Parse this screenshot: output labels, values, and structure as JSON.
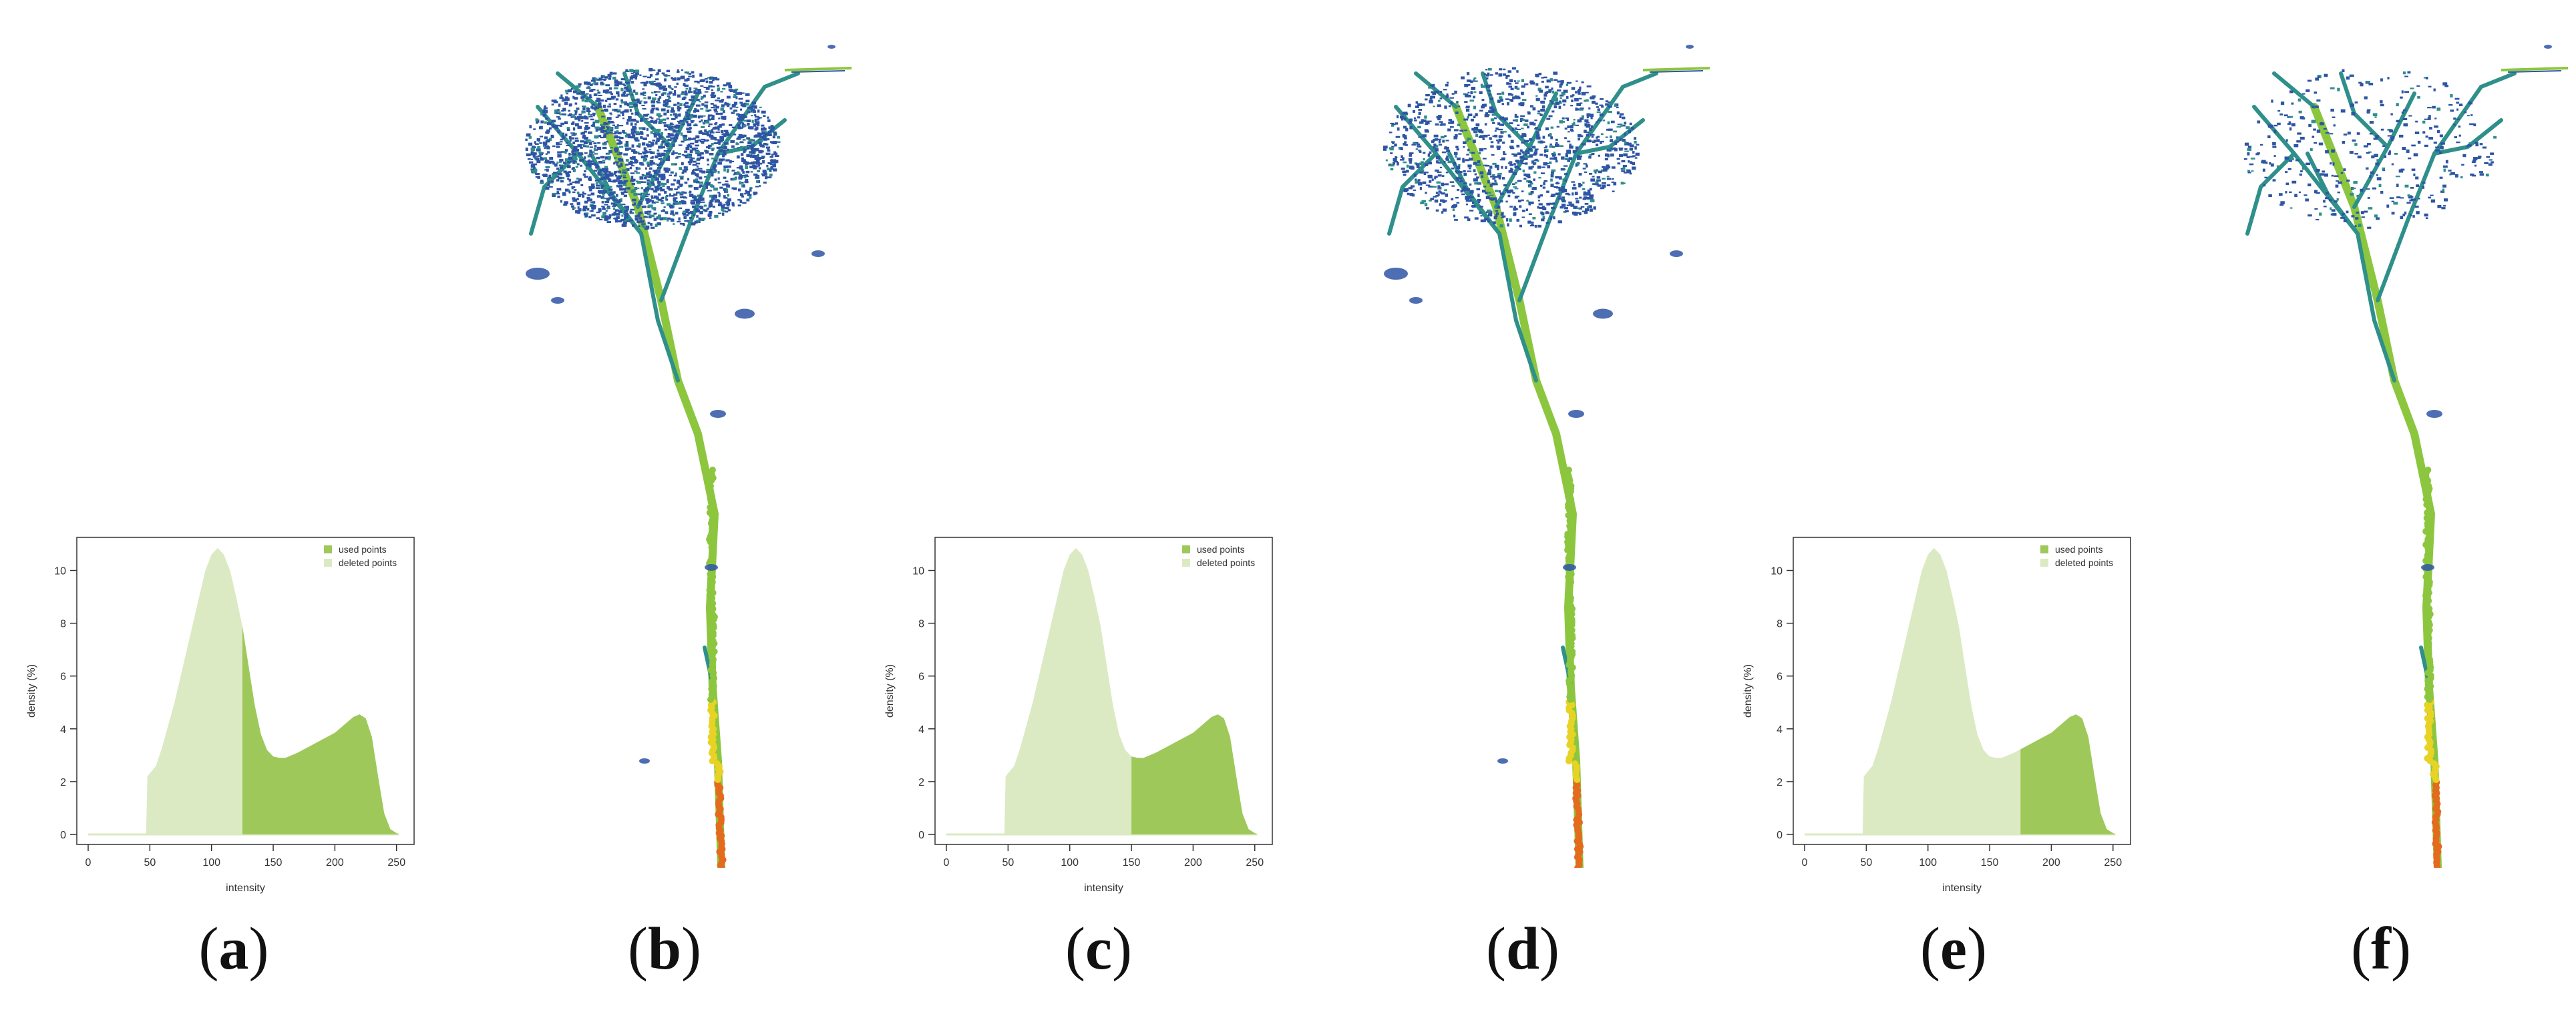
{
  "colors": {
    "used": "#9ec95a",
    "deleted": "#dbeac3",
    "axis": "#333333",
    "tree_blue": "#2e55a4",
    "tree_teal": "#2f8f8a",
    "tree_green": "#8cc63f",
    "tree_yellow": "#e8d325",
    "tree_orange": "#e46a1e"
  },
  "labels": [
    "a",
    "b",
    "c",
    "d",
    "e",
    "f"
  ],
  "chart_data": [
    {
      "type": "area",
      "panel": "a",
      "xlabel": "intensity",
      "ylabel": "density (%)",
      "xlim": [
        0,
        255
      ],
      "ylim": [
        0,
        11
      ],
      "xticks": [
        0,
        50,
        100,
        150,
        200,
        250
      ],
      "yticks": [
        0,
        2,
        4,
        6,
        8,
        10
      ],
      "threshold": 125,
      "legend": {
        "position": "top-right",
        "items": [
          "used points",
          "deleted points"
        ]
      },
      "series": [
        {
          "name": "used points",
          "from": 125,
          "to": 255
        },
        {
          "name": "deleted points",
          "from": 0,
          "to": 125
        }
      ],
      "x": [
        0,
        47,
        48,
        55,
        60,
        70,
        80,
        90,
        95,
        100,
        105,
        110,
        115,
        120,
        125,
        130,
        135,
        140,
        145,
        150,
        155,
        160,
        170,
        180,
        190,
        200,
        210,
        215,
        220,
        225,
        230,
        235,
        240,
        245,
        250,
        252
      ],
      "values": [
        0,
        0,
        2.2,
        2.6,
        3.3,
        5.0,
        7.0,
        9.0,
        10.0,
        10.6,
        10.85,
        10.6,
        10.0,
        9.0,
        7.9,
        6.4,
        4.9,
        3.8,
        3.2,
        2.95,
        2.9,
        2.9,
        3.1,
        3.35,
        3.6,
        3.85,
        4.25,
        4.45,
        4.55,
        4.4,
        3.7,
        2.2,
        0.8,
        0.2,
        0.05,
        0
      ]
    },
    {
      "type": "area",
      "panel": "c",
      "xlabel": "intensity",
      "ylabel": "density (%)",
      "xlim": [
        0,
        255
      ],
      "ylim": [
        0,
        11
      ],
      "xticks": [
        0,
        50,
        100,
        150,
        200,
        250
      ],
      "yticks": [
        0,
        2,
        4,
        6,
        8,
        10
      ],
      "threshold": 150,
      "legend": {
        "position": "top-right",
        "items": [
          "used points",
          "deleted points"
        ]
      },
      "series": [
        {
          "name": "used points",
          "from": 150,
          "to": 255
        },
        {
          "name": "deleted points",
          "from": 0,
          "to": 150
        }
      ],
      "x": [
        0,
        47,
        48,
        55,
        60,
        70,
        80,
        90,
        95,
        100,
        105,
        110,
        115,
        120,
        125,
        130,
        135,
        140,
        145,
        150,
        155,
        160,
        170,
        180,
        190,
        200,
        210,
        215,
        220,
        225,
        230,
        235,
        240,
        245,
        250,
        252
      ],
      "values": [
        0,
        0,
        2.2,
        2.6,
        3.3,
        5.0,
        7.0,
        9.0,
        10.0,
        10.6,
        10.85,
        10.6,
        10.0,
        9.0,
        7.9,
        6.4,
        4.9,
        3.8,
        3.2,
        2.95,
        2.9,
        2.9,
        3.1,
        3.35,
        3.6,
        3.85,
        4.25,
        4.45,
        4.55,
        4.4,
        3.7,
        2.2,
        0.8,
        0.2,
        0.05,
        0
      ]
    },
    {
      "type": "area",
      "panel": "e",
      "xlabel": "intensity",
      "ylabel": "density (%)",
      "xlim": [
        0,
        255
      ],
      "ylim": [
        0,
        11
      ],
      "xticks": [
        0,
        50,
        100,
        150,
        200,
        250
      ],
      "yticks": [
        0,
        2,
        4,
        6,
        8,
        10
      ],
      "threshold": 175,
      "legend": {
        "position": "top-right",
        "items": [
          "used points",
          "deleted points"
        ]
      },
      "series": [
        {
          "name": "used points",
          "from": 175,
          "to": 255
        },
        {
          "name": "deleted points",
          "from": 0,
          "to": 175
        }
      ],
      "x": [
        0,
        47,
        48,
        55,
        60,
        70,
        80,
        90,
        95,
        100,
        105,
        110,
        115,
        120,
        125,
        130,
        135,
        140,
        145,
        150,
        155,
        160,
        170,
        180,
        190,
        200,
        210,
        215,
        220,
        225,
        230,
        235,
        240,
        245,
        250,
        252
      ],
      "values": [
        0,
        0,
        2.2,
        2.6,
        3.3,
        5.0,
        7.0,
        9.0,
        10.0,
        10.6,
        10.85,
        10.6,
        10.0,
        9.0,
        7.9,
        6.4,
        4.9,
        3.8,
        3.2,
        2.95,
        2.9,
        2.9,
        3.1,
        3.35,
        3.6,
        3.85,
        4.25,
        4.45,
        4.55,
        4.4,
        3.7,
        2.2,
        0.8,
        0.2,
        0.05,
        0
      ]
    }
  ]
}
